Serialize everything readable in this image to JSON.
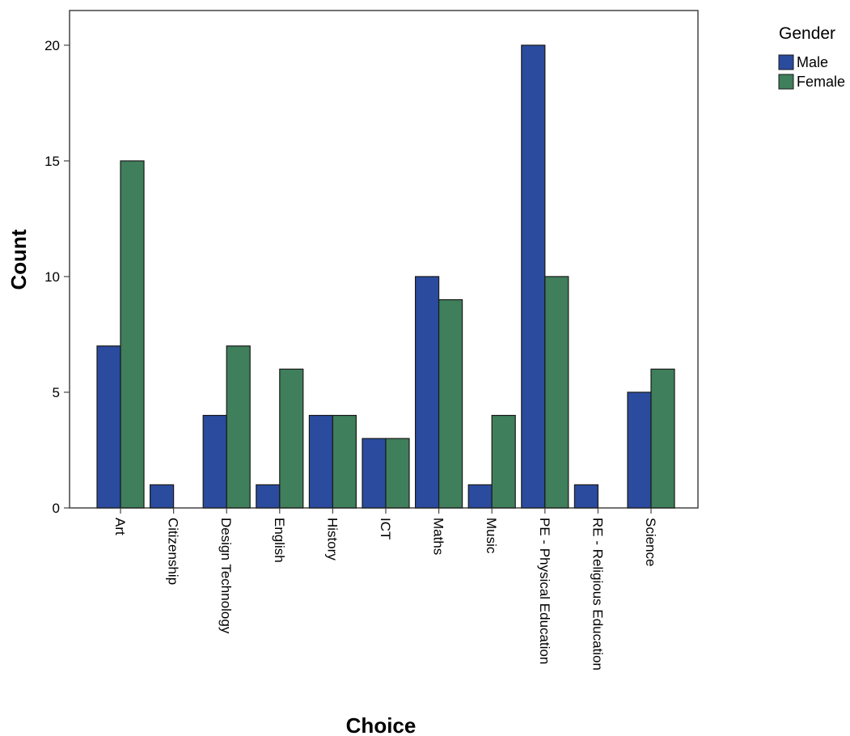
{
  "chart_data": {
    "type": "bar",
    "xlabel": "Choice",
    "ylabel": "Count",
    "ylim": [
      0,
      21.5
    ],
    "yticks": [
      0,
      5,
      10,
      15,
      20
    ],
    "grid": false,
    "legend": {
      "title": "Gender",
      "placement": "top-right"
    },
    "categories": [
      "Art",
      "Citizenship",
      "Design Technology",
      "English",
      "History",
      "ICT",
      "Maths",
      "Music",
      "PE - Physical Education",
      "RE - Religious Education",
      "Science"
    ],
    "series": [
      {
        "name": "Male",
        "color": "#2a4b9e",
        "values": [
          7,
          1,
          4,
          1,
          4,
          3,
          10,
          1,
          20,
          1,
          5
        ]
      },
      {
        "name": "Female",
        "color": "#3f7f5b",
        "values": [
          15,
          0,
          7,
          6,
          4,
          3,
          9,
          4,
          10,
          0,
          6
        ]
      }
    ]
  }
}
